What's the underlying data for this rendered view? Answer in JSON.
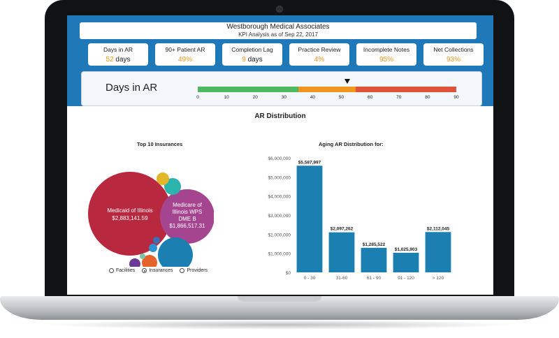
{
  "header": {
    "title": "Westborough Medical Associates",
    "subtitle": "KPI Analysis as of Sep 22, 2017"
  },
  "kpis": [
    {
      "label": "Days in AR",
      "value": "52",
      "unit": "days"
    },
    {
      "label": "90+ Patient AR",
      "value": "49%",
      "unit": ""
    },
    {
      "label": "Completion Lag",
      "value": "9",
      "unit": "days"
    },
    {
      "label": "Practice Review",
      "value": "4%",
      "unit": ""
    },
    {
      "label": "Incomplete Notes",
      "value": "95%",
      "unit": ""
    },
    {
      "label": "Net Collections",
      "value": "93%",
      "unit": ""
    }
  ],
  "gauge": {
    "title": "Days in AR",
    "min": 0,
    "max": 90,
    "value": 52,
    "ticks": [
      "0",
      "10",
      "20",
      "30",
      "40",
      "50",
      "60",
      "70",
      "80",
      "90"
    ],
    "segments": [
      {
        "from": 0,
        "to": 35,
        "color": "#4fb862"
      },
      {
        "from": 35,
        "to": 55,
        "color": "#f0961e"
      },
      {
        "from": 55,
        "to": 90,
        "color": "#e2513a"
      }
    ]
  },
  "ar_distribution": {
    "title": "AR Distribution",
    "insurances_title": "Top 10 Insurances",
    "aging_title": "Aging AR Distribution for:"
  },
  "bubbles": [
    {
      "name": "Medicaid of Illinois",
      "amount": "$2,883,141.59",
      "color": "#b8283e"
    },
    {
      "name": "Medicare of Illinois WPS DME B",
      "amount": "$1,866,517.31",
      "color": "#a6458f"
    },
    {
      "name": "",
      "amount": "",
      "color": "#1c7fb2"
    },
    {
      "name": "",
      "amount": "",
      "color": "#2bb3ac"
    },
    {
      "name": "",
      "amount": "",
      "color": "#e4b62a"
    },
    {
      "name": "",
      "amount": "",
      "color": "#e5622c"
    },
    {
      "name": "",
      "amount": "",
      "color": "#6a3a94"
    },
    {
      "name": "",
      "amount": "",
      "color": "#2a95cf"
    },
    {
      "name": "",
      "amount": "",
      "color": "#3b6fb6"
    },
    {
      "name": "",
      "amount": "",
      "color": "#7cc2a4"
    }
  ],
  "radio_options": [
    {
      "label": "Facilities",
      "selected": false
    },
    {
      "label": "Insurances",
      "selected": true
    },
    {
      "label": "Providers",
      "selected": false
    }
  ],
  "chart_data": {
    "type": "bar",
    "title": "Aging AR Distribution for:",
    "categories": [
      "0 - 30",
      "31-60",
      "61 - 90",
      "91 - 120",
      "> 120"
    ],
    "values": [
      5587997,
      2097262,
      1285522,
      1025903,
      2112045
    ],
    "value_labels": [
      "$5,587,997",
      "$2,097,262",
      "$1,285,522",
      "$1,025,903",
      "$2,112,045"
    ],
    "ylim": [
      0,
      6000000
    ],
    "yticks": [
      "$0",
      "$1,000,000",
      "$2,000,000",
      "$3,000,000",
      "$4,000,000",
      "$5,000,000",
      "$6,000,000"
    ],
    "xlabel": "",
    "ylabel": "",
    "bar_color": "#1c7fb2",
    "grid": false
  }
}
